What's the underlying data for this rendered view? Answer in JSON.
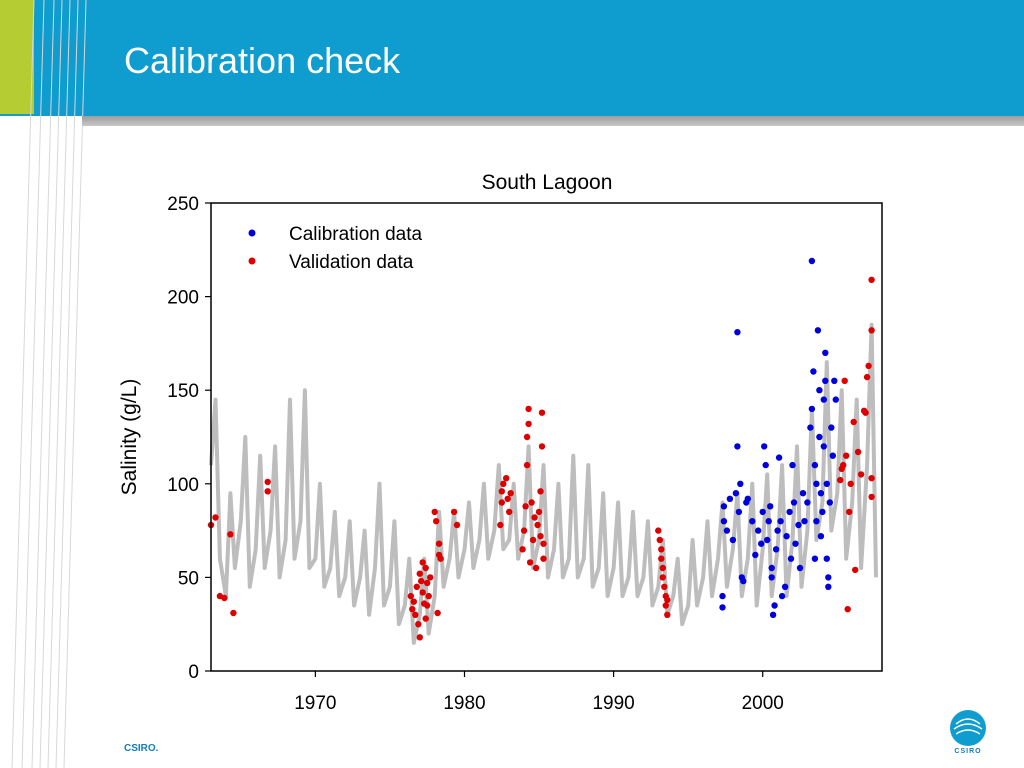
{
  "slide": {
    "title": "Calibration check",
    "footer": "CSIRO.",
    "logo_text": "CSIRO",
    "colors": {
      "header": "#0f9dcf",
      "accent_green": "#b5cc33",
      "brand_blue": "#0f7dc0"
    }
  },
  "chart_data": {
    "type": "scatter",
    "title": "South Lagoon",
    "xlabel": "",
    "ylabel": "Salinity (g/L)",
    "xlim": [
      1963,
      2008
    ],
    "ylim": [
      0,
      250
    ],
    "xticks": [
      1970,
      1980,
      1990,
      2000
    ],
    "yticks": [
      0,
      50,
      100,
      150,
      200,
      250
    ],
    "grid": false,
    "legend_position": "top-left",
    "modelled_line": {
      "color": "#bdbdbd",
      "points": [
        [
          1963.0,
          110
        ],
        [
          1963.3,
          145
        ],
        [
          1963.6,
          60
        ],
        [
          1964.0,
          40
        ],
        [
          1964.3,
          95
        ],
        [
          1964.6,
          55
        ],
        [
          1965.0,
          80
        ],
        [
          1965.3,
          125
        ],
        [
          1965.6,
          45
        ],
        [
          1966.0,
          65
        ],
        [
          1966.3,
          115
        ],
        [
          1966.6,
          55
        ],
        [
          1967.0,
          75
        ],
        [
          1967.3,
          120
        ],
        [
          1967.6,
          50
        ],
        [
          1968.0,
          70
        ],
        [
          1968.3,
          145
        ],
        [
          1968.6,
          60
        ],
        [
          1969.0,
          80
        ],
        [
          1969.3,
          150
        ],
        [
          1969.6,
          55
        ],
        [
          1970.0,
          60
        ],
        [
          1970.3,
          100
        ],
        [
          1970.6,
          45
        ],
        [
          1971.0,
          55
        ],
        [
          1971.3,
          85
        ],
        [
          1971.6,
          40
        ],
        [
          1972.0,
          50
        ],
        [
          1972.3,
          80
        ],
        [
          1972.6,
          35
        ],
        [
          1973.0,
          50
        ],
        [
          1973.3,
          75
        ],
        [
          1973.6,
          30
        ],
        [
          1974.0,
          55
        ],
        [
          1974.3,
          100
        ],
        [
          1974.6,
          35
        ],
        [
          1975.0,
          45
        ],
        [
          1975.3,
          80
        ],
        [
          1975.6,
          25
        ],
        [
          1976.0,
          35
        ],
        [
          1976.3,
          60
        ],
        [
          1976.6,
          15
        ],
        [
          1977.0,
          30
        ],
        [
          1977.3,
          60
        ],
        [
          1977.6,
          20
        ],
        [
          1978.0,
          40
        ],
        [
          1978.3,
          85
        ],
        [
          1978.6,
          45
        ],
        [
          1979.0,
          60
        ],
        [
          1979.3,
          85
        ],
        [
          1979.6,
          50
        ],
        [
          1980.0,
          65
        ],
        [
          1980.3,
          90
        ],
        [
          1980.6,
          55
        ],
        [
          1981.0,
          70
        ],
        [
          1981.3,
          100
        ],
        [
          1981.6,
          60
        ],
        [
          1982.0,
          75
        ],
        [
          1982.3,
          110
        ],
        [
          1982.6,
          65
        ],
        [
          1983.0,
          70
        ],
        [
          1983.3,
          100
        ],
        [
          1983.6,
          60
        ],
        [
          1984.0,
          75
        ],
        [
          1984.3,
          120
        ],
        [
          1984.6,
          55
        ],
        [
          1985.0,
          70
        ],
        [
          1985.3,
          110
        ],
        [
          1985.6,
          50
        ],
        [
          1986.0,
          65
        ],
        [
          1986.3,
          100
        ],
        [
          1986.6,
          50
        ],
        [
          1987.0,
          60
        ],
        [
          1987.3,
          115
        ],
        [
          1987.6,
          50
        ],
        [
          1988.0,
          60
        ],
        [
          1988.3,
          110
        ],
        [
          1988.6,
          45
        ],
        [
          1989.0,
          55
        ],
        [
          1989.3,
          95
        ],
        [
          1989.6,
          40
        ],
        [
          1990.0,
          55
        ],
        [
          1990.3,
          90
        ],
        [
          1990.6,
          40
        ],
        [
          1991.0,
          50
        ],
        [
          1991.3,
          85
        ],
        [
          1991.6,
          40
        ],
        [
          1992.0,
          50
        ],
        [
          1992.3,
          80
        ],
        [
          1992.6,
          35
        ],
        [
          1993.0,
          45
        ],
        [
          1993.3,
          70
        ],
        [
          1993.6,
          30
        ],
        [
          1994.0,
          40
        ],
        [
          1994.3,
          60
        ],
        [
          1994.6,
          25
        ],
        [
          1995.0,
          35
        ],
        [
          1995.3,
          70
        ],
        [
          1995.6,
          35
        ],
        [
          1996.0,
          50
        ],
        [
          1996.3,
          80
        ],
        [
          1996.6,
          40
        ],
        [
          1997.0,
          60
        ],
        [
          1997.3,
          90
        ],
        [
          1997.6,
          45
        ],
        [
          1998.0,
          65
        ],
        [
          1998.3,
          95
        ],
        [
          1998.6,
          40
        ],
        [
          1999.0,
          60
        ],
        [
          1999.3,
          100
        ],
        [
          1999.6,
          35
        ],
        [
          2000.0,
          65
        ],
        [
          2000.3,
          105
        ],
        [
          2000.6,
          40
        ],
        [
          2001.0,
          65
        ],
        [
          2001.3,
          110
        ],
        [
          2001.6,
          40
        ],
        [
          2002.0,
          70
        ],
        [
          2002.3,
          120
        ],
        [
          2002.6,
          45
        ],
        [
          2003.0,
          75
        ],
        [
          2003.3,
          140
        ],
        [
          2003.6,
          70
        ],
        [
          2004.0,
          90
        ],
        [
          2004.3,
          165
        ],
        [
          2004.6,
          75
        ],
        [
          2005.0,
          95
        ],
        [
          2005.3,
          150
        ],
        [
          2005.6,
          60
        ],
        [
          2006.0,
          90
        ],
        [
          2006.3,
          145
        ],
        [
          2006.6,
          55
        ],
        [
          2007.0,
          110
        ],
        [
          2007.3,
          185
        ],
        [
          2007.6,
          50
        ]
      ]
    },
    "series": [
      {
        "name": "Calibration data",
        "color": "#0000dd",
        "points": [
          [
            1997.3,
            34
          ],
          [
            1997.3,
            40
          ],
          [
            1997.4,
            80
          ],
          [
            1997.4,
            88
          ],
          [
            1997.6,
            75
          ],
          [
            1997.8,
            92
          ],
          [
            1998.0,
            70
          ],
          [
            1998.2,
            95
          ],
          [
            1998.3,
            181
          ],
          [
            1998.3,
            120
          ],
          [
            1998.4,
            85
          ],
          [
            1998.5,
            100
          ],
          [
            1998.6,
            50
          ],
          [
            1998.7,
            48
          ],
          [
            1998.9,
            90
          ],
          [
            1999.0,
            92
          ],
          [
            1999.3,
            80
          ],
          [
            1999.5,
            62
          ],
          [
            1999.7,
            75
          ],
          [
            1999.9,
            68
          ],
          [
            2000.0,
            85
          ],
          [
            2000.1,
            120
          ],
          [
            2000.2,
            110
          ],
          [
            2000.3,
            70
          ],
          [
            2000.4,
            80
          ],
          [
            2000.5,
            88
          ],
          [
            2000.6,
            55
          ],
          [
            2000.6,
            50
          ],
          [
            2000.7,
            30
          ],
          [
            2000.8,
            35
          ],
          [
            2000.9,
            65
          ],
          [
            2001.0,
            75
          ],
          [
            2001.1,
            114
          ],
          [
            2001.2,
            80
          ],
          [
            2001.3,
            40
          ],
          [
            2001.5,
            45
          ],
          [
            2001.6,
            72
          ],
          [
            2001.8,
            85
          ],
          [
            2001.9,
            60
          ],
          [
            2002.0,
            110
          ],
          [
            2002.1,
            90
          ],
          [
            2002.2,
            68
          ],
          [
            2002.4,
            78
          ],
          [
            2002.5,
            55
          ],
          [
            2002.7,
            95
          ],
          [
            2002.8,
            80
          ],
          [
            2003.0,
            90
          ],
          [
            2003.2,
            130
          ],
          [
            2003.3,
            140
          ],
          [
            2003.3,
            219
          ],
          [
            2003.4,
            160
          ],
          [
            2003.5,
            110
          ],
          [
            2003.5,
            60
          ],
          [
            2003.6,
            100
          ],
          [
            2003.7,
            182
          ],
          [
            2003.8,
            150
          ],
          [
            2003.8,
            125
          ],
          [
            2003.9,
            95
          ],
          [
            2004.0,
            85
          ],
          [
            2004.1,
            145
          ],
          [
            2004.1,
            120
          ],
          [
            2004.2,
            170
          ],
          [
            2004.2,
            155
          ],
          [
            2004.3,
            100
          ],
          [
            2004.3,
            60
          ],
          [
            2004.4,
            50
          ],
          [
            2004.4,
            45
          ],
          [
            2004.5,
            90
          ],
          [
            2004.6,
            130
          ],
          [
            2004.7,
            115
          ],
          [
            2004.8,
            155
          ],
          [
            2004.9,
            145
          ],
          [
            2003.9,
            72
          ],
          [
            2003.6,
            80
          ]
        ]
      },
      {
        "name": "Validation data",
        "color": "#dd0000",
        "points": [
          [
            1963.0,
            78
          ],
          [
            1963.3,
            82
          ],
          [
            1963.6,
            40
          ],
          [
            1963.9,
            39
          ],
          [
            1964.3,
            73
          ],
          [
            1964.5,
            31
          ],
          [
            1966.8,
            101
          ],
          [
            1966.8,
            96
          ],
          [
            1976.4,
            40
          ],
          [
            1976.5,
            33
          ],
          [
            1976.6,
            37
          ],
          [
            1976.7,
            30
          ],
          [
            1976.8,
            45
          ],
          [
            1976.9,
            25
          ],
          [
            1977.0,
            52
          ],
          [
            1977.0,
            18
          ],
          [
            1977.1,
            48
          ],
          [
            1977.2,
            42
          ],
          [
            1977.2,
            58
          ],
          [
            1977.3,
            36
          ],
          [
            1977.4,
            55
          ],
          [
            1977.4,
            28
          ],
          [
            1977.5,
            47
          ],
          [
            1977.5,
            35
          ],
          [
            1977.6,
            40
          ],
          [
            1977.7,
            50
          ],
          [
            1978.0,
            85
          ],
          [
            1978.1,
            80
          ],
          [
            1978.3,
            68
          ],
          [
            1978.3,
            62
          ],
          [
            1978.4,
            60
          ],
          [
            1978.2,
            31
          ],
          [
            1979.3,
            85
          ],
          [
            1979.5,
            78
          ],
          [
            1982.4,
            78
          ],
          [
            1982.5,
            90
          ],
          [
            1982.5,
            96
          ],
          [
            1982.6,
            100
          ],
          [
            1982.8,
            103
          ],
          [
            1982.9,
            92
          ],
          [
            1983.0,
            85
          ],
          [
            1983.1,
            95
          ],
          [
            1983.9,
            65
          ],
          [
            1984.0,
            75
          ],
          [
            1984.1,
            88
          ],
          [
            1984.2,
            110
          ],
          [
            1984.2,
            125
          ],
          [
            1984.3,
            140
          ],
          [
            1984.3,
            132
          ],
          [
            1984.4,
            58
          ],
          [
            1984.5,
            90
          ],
          [
            1984.6,
            70
          ],
          [
            1984.7,
            82
          ],
          [
            1984.8,
            55
          ],
          [
            1984.9,
            78
          ],
          [
            1985.0,
            85
          ],
          [
            1985.1,
            96
          ],
          [
            1985.1,
            72
          ],
          [
            1985.2,
            138
          ],
          [
            1985.2,
            120
          ],
          [
            1985.3,
            60
          ],
          [
            1985.3,
            68
          ],
          [
            1993.0,
            75
          ],
          [
            1993.1,
            70
          ],
          [
            1993.2,
            65
          ],
          [
            1993.2,
            60
          ],
          [
            1993.3,
            55
          ],
          [
            1993.3,
            50
          ],
          [
            1993.4,
            45
          ],
          [
            1993.5,
            40
          ],
          [
            1993.5,
            35
          ],
          [
            1993.6,
            30
          ],
          [
            1993.6,
            38
          ],
          [
            2005.2,
            102
          ],
          [
            2005.3,
            108
          ],
          [
            2005.4,
            110
          ],
          [
            2005.5,
            155
          ],
          [
            2005.6,
            115
          ],
          [
            2005.7,
            33
          ],
          [
            2005.8,
            85
          ],
          [
            2005.9,
            100
          ],
          [
            2006.1,
            133
          ],
          [
            2006.2,
            54
          ],
          [
            2006.4,
            117
          ],
          [
            2006.6,
            105
          ],
          [
            2006.8,
            139
          ],
          [
            2006.9,
            138
          ],
          [
            2007.0,
            157
          ],
          [
            2007.1,
            163
          ],
          [
            2007.3,
            209
          ],
          [
            2007.3,
            182
          ],
          [
            2007.3,
            103
          ],
          [
            2007.3,
            93
          ]
        ]
      }
    ]
  }
}
